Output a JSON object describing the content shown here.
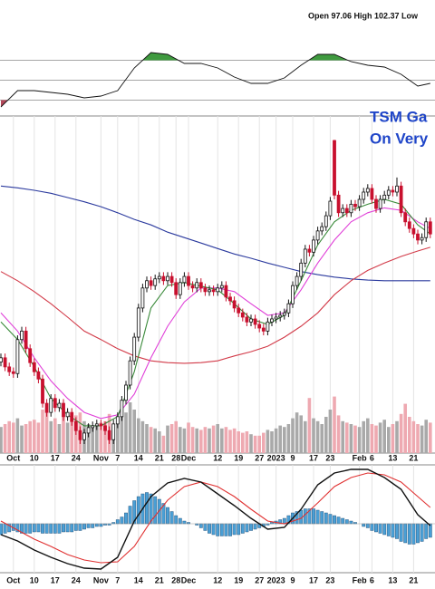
{
  "chart_data": {
    "type": "candlestick",
    "header": "Open 97.06 High 102.37 Low",
    "title_lines": [
      "TSM Ga",
      "On Very"
    ],
    "categories": [
      null,
      null,
      null,
      "Oct",
      null,
      null,
      null,
      null,
      "10",
      null,
      null,
      null,
      null,
      "17",
      null,
      null,
      null,
      null,
      "24",
      null,
      null,
      null,
      null,
      null,
      "Nov",
      null,
      null,
      null,
      "7",
      null,
      null,
      null,
      null,
      "14",
      null,
      null,
      null,
      null,
      "21",
      null,
      null,
      null,
      "28",
      null,
      null,
      "Dec",
      null,
      null,
      null,
      null,
      null,
      null,
      "12",
      null,
      null,
      null,
      null,
      "19",
      null,
      null,
      null,
      null,
      "27",
      null,
      null,
      null,
      "2023",
      null,
      null,
      null,
      "9",
      null,
      null,
      null,
      null,
      "17",
      null,
      null,
      null,
      "23",
      null,
      null,
      null,
      null,
      null,
      null,
      "Feb",
      null,
      null,
      "6",
      null,
      null,
      null,
      null,
      "13",
      null,
      null,
      null,
      null,
      "21",
      null,
      null,
      null,
      null
    ],
    "ylim": [
      57,
      110
    ],
    "candle_colors": {
      "up": "#111111",
      "down": "#c8102e"
    },
    "candles": [
      [
        72.0,
        73.4,
        71.3,
        72.7
      ],
      [
        72.7,
        73.4,
        70.5,
        71.2
      ],
      [
        71.2,
        71.9,
        69.7,
        70.4
      ],
      [
        70.4,
        71.1,
        69.4,
        70.1
      ],
      [
        70.1,
        76.4,
        69.4,
        75.7
      ],
      [
        75.7,
        77.8,
        75.0,
        77.1
      ],
      [
        77.1,
        77.8,
        73.5,
        74.2
      ],
      [
        74.2,
        74.9,
        71.2,
        71.9
      ],
      [
        71.9,
        72.6,
        69.7,
        70.4
      ],
      [
        70.4,
        71.1,
        68.5,
        69.2
      ],
      [
        69.2,
        69.9,
        64.5,
        65.2
      ],
      [
        65.2,
        65.9,
        63.0,
        63.7
      ],
      [
        63.7,
        66.7,
        63.0,
        66.0
      ],
      [
        66.0,
        66.7,
        63.8,
        64.5
      ],
      [
        64.5,
        65.9,
        63.8,
        65.2
      ],
      [
        65.2,
        65.9,
        62.3,
        63.0
      ],
      [
        63.0,
        64.4,
        62.3,
        63.7
      ],
      [
        63.7,
        64.4,
        61.5,
        62.2
      ],
      [
        62.2,
        62.9,
        60.0,
        60.7
      ],
      [
        60.7,
        61.4,
        58.5,
        59.2
      ],
      [
        59.2,
        61.0,
        58.5,
        60.3
      ],
      [
        60.3,
        61.9,
        59.6,
        61.2
      ],
      [
        61.2,
        62.2,
        60.5,
        61.5
      ],
      [
        61.5,
        62.5,
        60.8,
        61.8
      ],
      [
        61.8,
        62.5,
        60.8,
        61.5
      ],
      [
        61.5,
        62.2,
        60.0,
        60.7
      ],
      [
        60.7,
        61.4,
        58.5,
        59.2
      ],
      [
        59.2,
        62.5,
        58.5,
        61.8
      ],
      [
        61.8,
        63.7,
        61.1,
        63.0
      ],
      [
        63.0,
        66.4,
        62.3,
        65.7
      ],
      [
        65.7,
        68.9,
        65.0,
        68.2
      ],
      [
        68.2,
        72.9,
        67.5,
        72.2
      ],
      [
        72.2,
        76.8,
        71.5,
        76.1
      ],
      [
        76.1,
        81.6,
        75.4,
        80.9
      ],
      [
        80.9,
        84.9,
        80.2,
        84.2
      ],
      [
        84.2,
        86.1,
        83.5,
        85.4
      ],
      [
        85.4,
        86.1,
        83.9,
        84.6
      ],
      [
        84.6,
        86.4,
        83.9,
        85.7
      ],
      [
        85.7,
        86.8,
        85.0,
        86.1
      ],
      [
        86.1,
        86.8,
        84.7,
        85.4
      ],
      [
        85.4,
        86.8,
        84.7,
        86.1
      ],
      [
        86.1,
        86.8,
        84.4,
        85.1
      ],
      [
        85.1,
        85.8,
        82.4,
        83.1
      ],
      [
        83.1,
        85.8,
        82.4,
        85.1
      ],
      [
        85.1,
        86.8,
        84.4,
        86.1
      ],
      [
        86.1,
        86.8,
        83.9,
        84.6
      ],
      [
        84.6,
        85.3,
        83.5,
        84.2
      ],
      [
        84.2,
        85.8,
        83.5,
        85.1
      ],
      [
        85.1,
        85.8,
        83.5,
        84.2
      ],
      [
        84.2,
        84.9,
        82.9,
        83.6
      ],
      [
        83.6,
        84.6,
        82.9,
        83.9
      ],
      [
        83.9,
        84.6,
        82.9,
        83.6
      ],
      [
        83.6,
        84.9,
        82.9,
        84.2
      ],
      [
        84.2,
        85.3,
        83.5,
        84.6
      ],
      [
        84.6,
        85.3,
        82.0,
        82.7
      ],
      [
        82.7,
        83.4,
        81.4,
        82.1
      ],
      [
        82.1,
        82.8,
        80.2,
        80.9
      ],
      [
        80.9,
        81.6,
        79.4,
        80.1
      ],
      [
        80.1,
        80.8,
        78.7,
        79.4
      ],
      [
        79.4,
        80.1,
        77.9,
        78.6
      ],
      [
        78.6,
        79.8,
        77.9,
        79.1
      ],
      [
        79.1,
        79.8,
        77.5,
        78.2
      ],
      [
        78.2,
        78.9,
        76.9,
        77.6
      ],
      [
        77.6,
        78.3,
        76.4,
        77.1
      ],
      [
        77.1,
        79.3,
        76.4,
        78.6
      ],
      [
        78.6,
        79.8,
        77.9,
        79.1
      ],
      [
        79.1,
        80.1,
        78.4,
        79.4
      ],
      [
        79.4,
        80.4,
        78.7,
        79.7
      ],
      [
        79.7,
        80.8,
        79.0,
        80.1
      ],
      [
        80.1,
        82.3,
        79.4,
        81.6
      ],
      [
        81.6,
        85.3,
        80.9,
        84.6
      ],
      [
        84.6,
        86.8,
        83.9,
        86.1
      ],
      [
        86.1,
        89.0,
        85.4,
        88.3
      ],
      [
        88.3,
        91.3,
        87.6,
        90.6
      ],
      [
        90.6,
        91.3,
        89.4,
        90.1
      ],
      [
        90.1,
        92.8,
        89.4,
        92.1
      ],
      [
        92.1,
        94.3,
        91.4,
        93.6
      ],
      [
        93.6,
        95.0,
        92.9,
        94.3
      ],
      [
        94.3,
        96.8,
        93.6,
        96.1
      ],
      [
        96.1,
        99.2,
        95.4,
        98.5
      ],
      [
        108.5,
        108.6,
        98.8,
        99.5
      ],
      [
        99.5,
        100.2,
        95.9,
        96.6
      ],
      [
        96.6,
        98.0,
        95.9,
        97.3
      ],
      [
        97.3,
        98.0,
        95.9,
        96.6
      ],
      [
        96.6,
        98.7,
        95.9,
        98.0
      ],
      [
        98.0,
        98.7,
        96.9,
        97.6
      ],
      [
        97.6,
        99.5,
        96.9,
        98.8
      ],
      [
        98.8,
        100.7,
        98.1,
        100.0
      ],
      [
        100.0,
        101.3,
        99.3,
        100.6
      ],
      [
        100.6,
        101.3,
        98.1,
        98.8
      ],
      [
        98.8,
        99.5,
        96.6,
        97.3
      ],
      [
        97.3,
        99.5,
        96.6,
        98.8
      ],
      [
        98.8,
        100.2,
        98.1,
        99.5
      ],
      [
        99.5,
        101.0,
        98.8,
        100.3
      ],
      [
        100.3,
        101.0,
        99.3,
        100.0
      ],
      [
        100.0,
        102.4,
        99.3,
        101.0
      ],
      [
        101.0,
        101.7,
        95.9,
        96.6
      ],
      [
        96.6,
        97.3,
        94.4,
        95.1
      ],
      [
        95.1,
        95.8,
        93.3,
        94.0
      ],
      [
        94.0,
        94.7,
        92.4,
        93.1
      ],
      [
        93.1,
        93.8,
        91.4,
        92.1
      ],
      [
        92.1,
        93.2,
        91.4,
        92.5
      ],
      [
        92.5,
        95.8,
        91.8,
        95.1
      ],
      [
        95.1,
        95.8,
        92.4,
        93.1
      ]
    ],
    "sample_x": [
      0,
      4,
      8,
      12,
      16,
      20,
      24,
      28,
      32,
      36,
      40,
      44,
      48,
      52,
      56,
      60,
      64,
      68,
      72,
      76,
      80,
      84,
      88,
      92,
      96,
      100,
      103
    ],
    "overlays": [
      {
        "color": "#2b3a9e",
        "values": [
          101.0,
          100.7,
          100.3,
          99.8,
          99.1,
          98.4,
          97.6,
          96.6,
          95.5,
          94.6,
          93.4,
          92.5,
          91.6,
          90.7,
          89.8,
          89.1,
          88.3,
          87.6,
          86.9,
          86.4,
          86.0,
          85.7,
          85.5,
          85.4,
          85.4,
          85.4,
          85.4
        ]
      },
      {
        "color": "#d23a48",
        "values": [
          86.9,
          85.4,
          83.6,
          81.6,
          79.4,
          77.1,
          75.7,
          74.2,
          73.0,
          72.2,
          71.9,
          71.8,
          71.9,
          72.2,
          73.0,
          73.7,
          74.6,
          76.1,
          77.9,
          80.1,
          83.1,
          85.4,
          87.1,
          88.3,
          89.4,
          90.3,
          90.9
        ]
      },
      {
        "color": "#e040d8",
        "values": [
          80.1,
          77.1,
          72.7,
          68.9,
          66.0,
          63.7,
          62.7,
          63.3,
          66.7,
          72.7,
          77.9,
          81.9,
          84.2,
          84.2,
          83.6,
          81.6,
          79.7,
          80.1,
          83.9,
          88.3,
          92.1,
          95.1,
          96.6,
          97.4,
          97.0,
          95.1,
          94.0
        ]
      },
      {
        "color": "#3a8a3a",
        "values": [
          78.6,
          75.7,
          71.2,
          66.0,
          63.3,
          61.5,
          61.5,
          63.0,
          70.4,
          80.9,
          84.6,
          85.1,
          84.5,
          83.9,
          81.6,
          79.1,
          78.2,
          79.7,
          85.4,
          91.3,
          95.1,
          97.0,
          98.0,
          98.8,
          98.0,
          94.6,
          93.1
        ]
      }
    ],
    "volume": {
      "ylim": [
        0,
        50
      ],
      "colors": {
        "up": "#a9a9a9",
        "down": "#eea9b1"
      },
      "values": [
        18,
        20,
        22,
        21,
        24,
        19,
        20,
        22,
        23,
        21,
        30,
        28,
        22,
        24,
        20,
        25,
        21,
        23,
        26,
        28,
        22,
        20,
        18,
        19,
        21,
        22,
        27,
        20,
        23,
        25,
        28,
        35,
        30,
        24,
        22,
        20,
        18,
        17,
        15,
        12,
        19,
        20,
        22,
        18,
        17,
        21,
        18,
        17,
        16,
        18,
        17,
        19,
        20,
        17,
        18,
        16,
        17,
        15,
        14,
        15,
        13,
        12,
        12,
        14,
        16,
        15,
        17,
        19,
        18,
        20,
        24,
        28,
        26,
        22,
        38,
        24,
        22,
        20,
        25,
        30,
        39,
        26,
        22,
        21,
        20,
        19,
        18,
        22,
        24,
        20,
        19,
        21,
        23,
        18,
        20,
        22,
        27,
        34,
        25,
        22,
        20,
        19,
        23,
        21
      ]
    },
    "rsi": {
      "ylim": [
        15,
        85
      ],
      "levels": [
        70,
        50,
        30
      ],
      "color": "#111111",
      "fill_colors": {
        "over": "#3f9a3f",
        "under": "#b3485a"
      },
      "values": [
        23.2,
        39.5,
        39.5,
        37.7,
        35.9,
        32.3,
        34.1,
        39.5,
        62.3,
        77.7,
        75.9,
        66.8,
        66.8,
        62.3,
        53.2,
        46.8,
        46.8,
        52.3,
        65,
        75.9,
        75.9,
        68.6,
        65,
        63.2,
        55.9,
        44.1,
        46.8
      ]
    },
    "macd": {
      "ylim": [
        -3.5,
        4.2
      ],
      "colors": {
        "macd": "#111111",
        "signal": "#e03030",
        "histogram": "#4a9fd5"
      },
      "macd": [
        -0.8,
        -1.27,
        -1.93,
        -2.47,
        -2.93,
        -3.27,
        -3.33,
        -2.47,
        0.2,
        2.0,
        3.0,
        3.33,
        3.07,
        2.2,
        1.33,
        0.4,
        -0.4,
        -0.27,
        1.07,
        2.87,
        3.73,
        4.0,
        4.0,
        3.4,
        2.53,
        0.67,
        -0.13
      ],
      "signal": [
        0.2,
        -0.47,
        -1.13,
        -1.67,
        -2.27,
        -2.67,
        -2.87,
        -2.8,
        -1.67,
        0.2,
        1.73,
        2.73,
        3.07,
        2.73,
        2.0,
        1.07,
        0.2,
        0,
        0.4,
        1.53,
        2.73,
        3.4,
        3.73,
        3.6,
        3.07,
        2.0,
        1.2
      ],
      "histogram": [
        -0.8,
        -0.7,
        -0.6,
        -0.5,
        -0.6,
        -0.7,
        -0.7,
        -0.7,
        -0.6,
        -0.6,
        -0.7,
        -0.7,
        -0.7,
        -0.7,
        -0.7,
        -0.6,
        -0.6,
        -0.6,
        -0.5,
        -0.5,
        -0.4,
        -0.3,
        -0.3,
        -0.2,
        -0.2,
        -0.1,
        -0.1,
        0.1,
        0.3,
        0.5,
        0.8,
        1.3,
        1.7,
        2.0,
        2.2,
        2.3,
        2.2,
        2.0,
        1.8,
        1.5,
        1.2,
        0.9,
        0.6,
        0.4,
        0.2,
        0.1,
        0,
        -0.1,
        -0.3,
        -0.5,
        -0.7,
        -0.8,
        -0.9,
        -0.9,
        -0.9,
        -0.9,
        -0.8,
        -0.8,
        -0.7,
        -0.6,
        -0.5,
        -0.4,
        -0.3,
        -0.2,
        -0.1,
        0.1,
        0.2,
        0.3,
        0.4,
        0.6,
        0.8,
        0.9,
        1.0,
        1.1,
        1.1,
        1.1,
        1.0,
        0.9,
        0.8,
        0.7,
        0.6,
        0.5,
        0.4,
        0.3,
        0.2,
        0.1,
        0,
        -0.2,
        -0.3,
        -0.5,
        -0.6,
        -0.7,
        -0.8,
        -0.9,
        -1.0,
        -1.1,
        -1.3,
        -1.4,
        -1.5,
        -1.5,
        -1.4,
        -1.3,
        -1.1,
        -1.0
      ]
    }
  }
}
